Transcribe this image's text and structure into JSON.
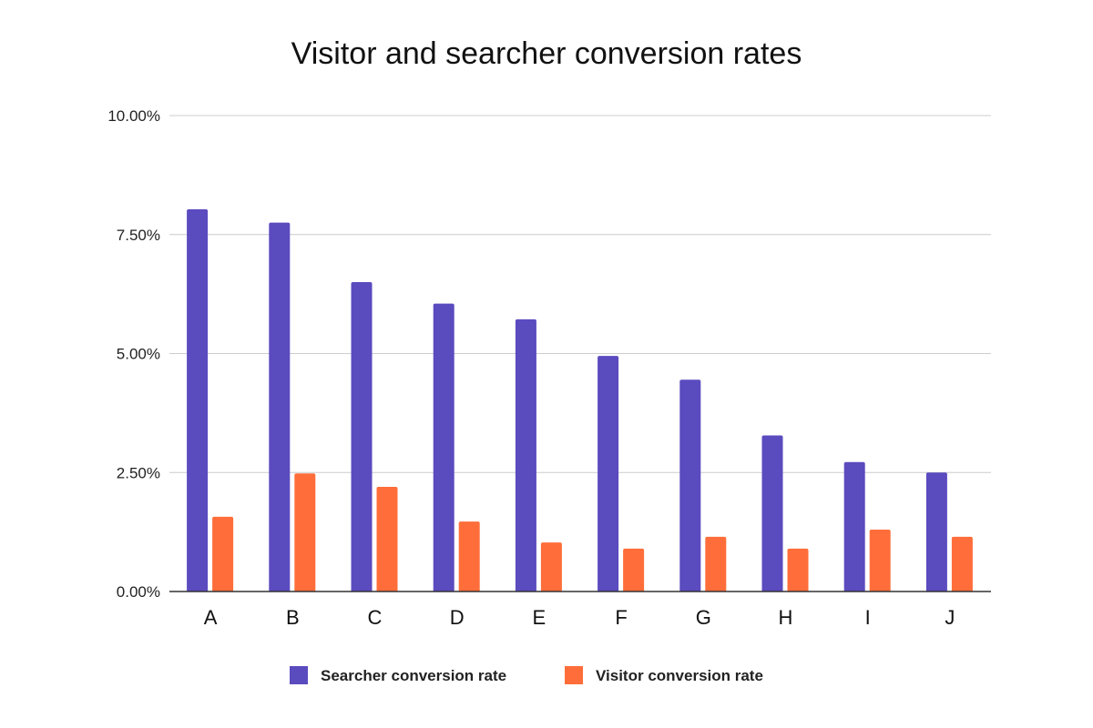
{
  "chart_data": {
    "type": "bar",
    "title": "Visitor and searcher conversion rates",
    "categories": [
      "A",
      "B",
      "C",
      "D",
      "E",
      "F",
      "G",
      "H",
      "I",
      "J"
    ],
    "series": [
      {
        "name": "Searcher conversion rate",
        "color": "#5a4bbf",
        "values": [
          8.03,
          7.75,
          6.5,
          6.05,
          5.72,
          4.95,
          4.45,
          3.28,
          2.72,
          2.5
        ]
      },
      {
        "name": "Visitor conversion rate",
        "color": "#ff6e3a",
        "values": [
          1.57,
          2.48,
          2.2,
          1.47,
          1.03,
          0.9,
          1.15,
          0.9,
          1.3,
          1.15
        ]
      }
    ],
    "yticks": [
      "0.00%",
      "2.50%",
      "5.00%",
      "7.50%",
      "10.00%"
    ],
    "ytick_values": [
      0,
      2.5,
      5,
      7.5,
      10
    ],
    "ylim": [
      0,
      10
    ],
    "grid": true,
    "legend_position": "bottom"
  }
}
